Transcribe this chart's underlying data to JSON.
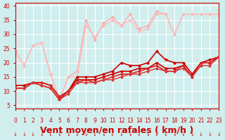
{
  "background_color": "#d0eeee",
  "grid_color": "#ffffff",
  "xlabel": "Vent moyen/en rafales ( km/h )",
  "xlabel_color": "#cc0000",
  "xlabel_fontsize": 9,
  "tick_color": "#cc0000",
  "ylim": [
    4,
    41
  ],
  "xlim": [
    0,
    23
  ],
  "yticks": [
    5,
    10,
    15,
    20,
    25,
    30,
    35,
    40
  ],
  "xticks": [
    0,
    1,
    2,
    3,
    4,
    5,
    6,
    7,
    8,
    9,
    10,
    11,
    12,
    13,
    14,
    15,
    16,
    17,
    18,
    19,
    20,
    21,
    22,
    23
  ],
  "series": [
    {
      "x": [
        0,
        1,
        2,
        3,
        4,
        5,
        6,
        7,
        8,
        9,
        10,
        11,
        12,
        13,
        14,
        15,
        16,
        17,
        18,
        19,
        20,
        21,
        22,
        23
      ],
      "y": [
        24,
        19,
        26,
        27,
        16,
        7,
        15,
        17,
        35,
        28,
        34,
        36,
        33,
        37,
        32,
        33,
        38,
        37,
        30,
        37,
        37,
        37,
        37,
        37
      ],
      "color": "#ffaaaa",
      "marker": "D",
      "markersize": 2,
      "linewidth": 1.0,
      "zorder": 2
    },
    {
      "x": [
        0,
        1,
        2,
        3,
        4,
        5,
        6,
        7,
        8,
        9,
        10,
        11,
        12,
        13,
        14,
        15,
        16,
        17,
        18,
        19,
        20,
        21,
        22,
        23
      ],
      "y": [
        24,
        19,
        26,
        27,
        16,
        7,
        15,
        15,
        33,
        29,
        33,
        35,
        33,
        35,
        31,
        32,
        37,
        37,
        30,
        37,
        37,
        37,
        37,
        37
      ],
      "color": "#ffbbbb",
      "marker": "D",
      "markersize": 2,
      "linewidth": 1.0,
      "zorder": 2
    },
    {
      "x": [
        0,
        1,
        2,
        3,
        4,
        5,
        6,
        7,
        8,
        9,
        10,
        11,
        12,
        13,
        14,
        15,
        16,
        17,
        18,
        19,
        20,
        21,
        22,
        23
      ],
      "y": [
        12,
        12,
        13,
        12,
        11,
        7,
        10,
        15,
        15,
        15,
        16,
        17,
        20,
        19,
        19,
        20,
        24,
        21,
        20,
        20,
        16,
        20,
        21,
        22
      ],
      "color": "#cc0000",
      "marker": "D",
      "markersize": 2,
      "linewidth": 1.2,
      "zorder": 3
    },
    {
      "x": [
        0,
        1,
        2,
        3,
        4,
        5,
        6,
        7,
        8,
        9,
        10,
        11,
        12,
        13,
        14,
        15,
        16,
        17,
        18,
        19,
        20,
        21,
        22,
        23
      ],
      "y": [
        11,
        11,
        13,
        13,
        12,
        8,
        10,
        14,
        14,
        14,
        15,
        16,
        17,
        17,
        18,
        18,
        20,
        18,
        18,
        19,
        15,
        20,
        20,
        22
      ],
      "color": "#cc0000",
      "marker": "D",
      "markersize": 2,
      "linewidth": 1.2,
      "zorder": 3
    },
    {
      "x": [
        0,
        1,
        2,
        3,
        4,
        5,
        6,
        7,
        8,
        9,
        10,
        11,
        12,
        13,
        14,
        15,
        16,
        17,
        18,
        19,
        20,
        21,
        22,
        23
      ],
      "y": [
        11,
        11,
        13,
        13,
        12,
        8,
        10,
        13,
        14,
        13,
        14,
        15,
        16,
        16,
        17,
        18,
        19,
        17,
        17,
        19,
        15,
        20,
        20,
        22
      ],
      "color": "#dd2222",
      "marker": "D",
      "markersize": 2,
      "linewidth": 1.2,
      "zorder": 3
    },
    {
      "x": [
        0,
        1,
        2,
        3,
        4,
        5,
        6,
        7,
        8,
        9,
        10,
        11,
        12,
        13,
        14,
        15,
        16,
        17,
        18,
        19,
        20,
        21,
        22,
        23
      ],
      "y": [
        11,
        11,
        13,
        12,
        11,
        7,
        9,
        13,
        13,
        13,
        14,
        14,
        15,
        16,
        16,
        17,
        18,
        17,
        17,
        18,
        15,
        19,
        19,
        22
      ],
      "color": "#dd3333",
      "marker": "D",
      "markersize": 2,
      "linewidth": 1.0,
      "zorder": 3
    }
  ],
  "arrow_color": "#cc0000",
  "arrow_symbol": "↓"
}
